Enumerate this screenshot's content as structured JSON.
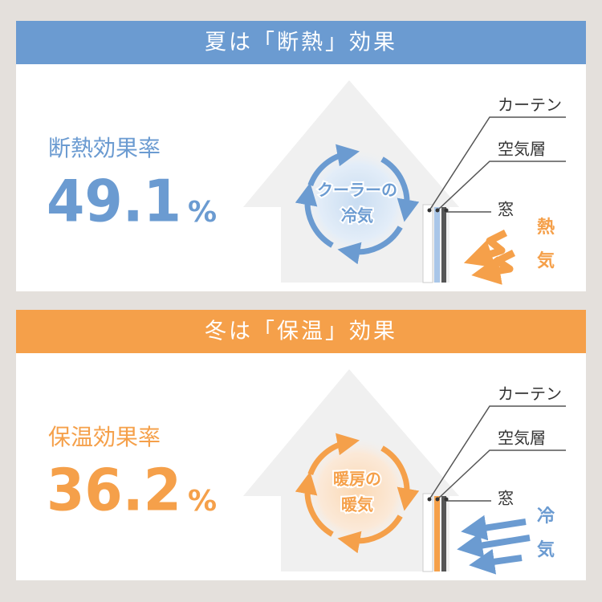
{
  "panels": [
    {
      "title": "夏は「断熱」効果",
      "rate_label": "断熱効果率",
      "rate_value": 49.1,
      "rate_unit": "%",
      "circle_text": [
        "クーラーの",
        "冷気"
      ],
      "labels": [
        "カーテン",
        "空気層",
        "窓"
      ],
      "side_text": [
        "熱",
        "気"
      ]
    },
    {
      "title": "冬は「保温」効果",
      "rate_label": "保温効果率",
      "rate_value": 36.2,
      "rate_unit": "%",
      "circle_text": [
        "暖房の",
        "暖気"
      ],
      "labels": [
        "カーテン",
        "空気層",
        "窓"
      ],
      "side_text": [
        "冷",
        "気"
      ]
    }
  ]
}
